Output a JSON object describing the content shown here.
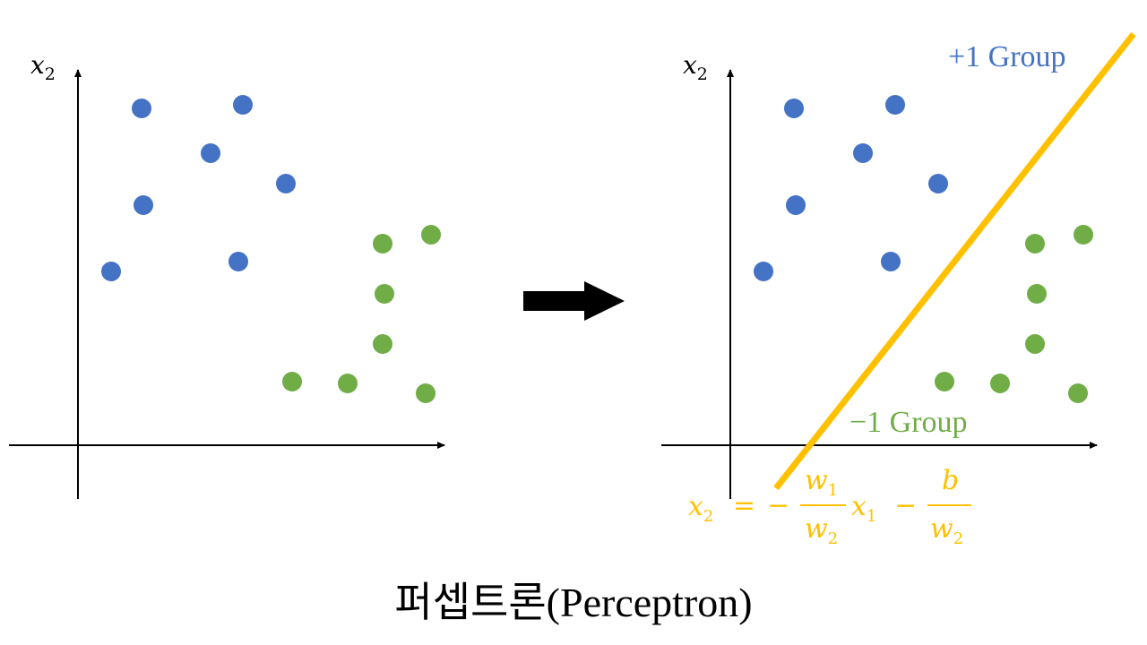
{
  "colors": {
    "positive": "#4472c4",
    "negative": "#70ad47",
    "boundary": "#ffc000",
    "axis": "#000000"
  },
  "left_panel": {
    "y_axis_label": {
      "var": "x",
      "sub": "2"
    }
  },
  "right_panel": {
    "y_axis_label": {
      "var": "x",
      "sub": "2"
    },
    "positive_label": "+1 Group",
    "negative_label": "−1 Group",
    "formula": {
      "lhs_var": "x",
      "lhs_sub": "2",
      "eq": "=",
      "minus1": "−",
      "frac1_num_var": "w",
      "frac1_num_sub": "1",
      "frac1_den_var": "w",
      "frac1_den_sub": "2",
      "mid_var": "x",
      "mid_sub": "1",
      "minus2": "−",
      "frac2_num": "b",
      "frac2_den_var": "w",
      "frac2_den_sub": "2"
    }
  },
  "arrow_icon": "right-arrow-icon",
  "title": "퍼셉트론(Perceptron)"
}
